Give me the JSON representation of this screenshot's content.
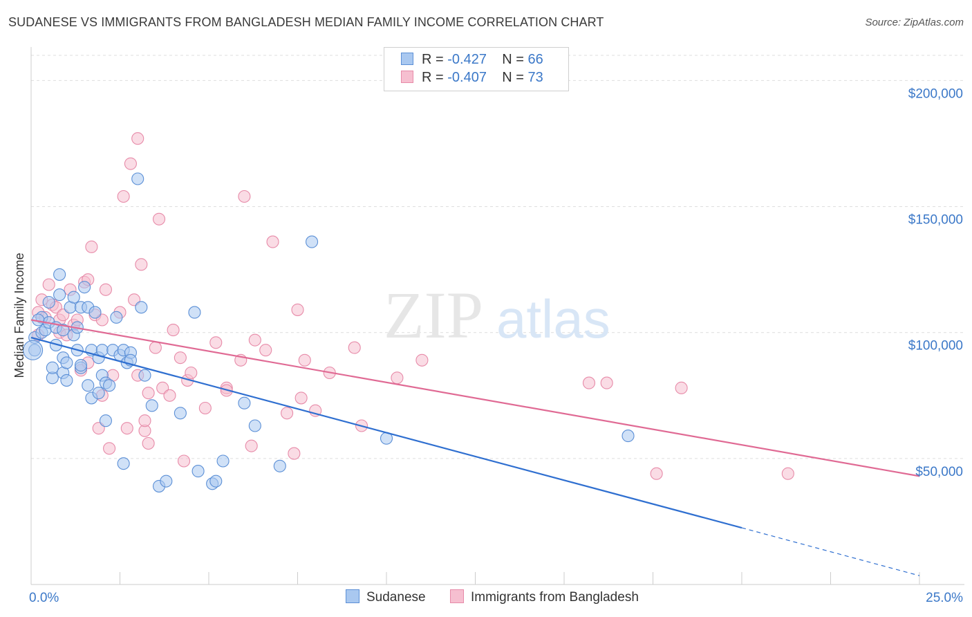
{
  "title": "SUDANESE VS IMMIGRANTS FROM BANGLADESH MEDIAN FAMILY INCOME CORRELATION CHART",
  "source": "Source: ZipAtlas.com",
  "watermark": {
    "zip": "ZIP",
    "atlas": "atlas"
  },
  "legend": {
    "rows": [
      {
        "r_label": "R =",
        "r_value": "-0.427",
        "n_label": "N =",
        "n_value": "66"
      },
      {
        "r_label": "R =",
        "r_value": "-0.407",
        "n_label": "N =",
        "n_value": "73"
      }
    ]
  },
  "bottom_legend": [
    "Sudanese",
    "Immigrants from Bangladesh"
  ],
  "colors": {
    "blue_fill": "#a9c8f0",
    "blue_stroke": "#5b8fd6",
    "blue_line": "#2f6fd0",
    "pink_fill": "#f6bfd0",
    "pink_stroke": "#e78aa8",
    "pink_line": "#e06a94",
    "axis_text": "#3b78c8",
    "grid": "#dddddd"
  },
  "chart_data": {
    "type": "scatter",
    "title": "SUDANESE VS IMMIGRANTS FROM BANGLADESH MEDIAN FAMILY INCOME CORRELATION CHART",
    "xlabel": "",
    "ylabel": "Median Family Income",
    "xlim": [
      0,
      25
    ],
    "ylim": [
      0,
      210000
    ],
    "x_tick_labels": [
      "0.0%",
      "25.0%"
    ],
    "y_ticks": [
      50000,
      100000,
      150000,
      200000
    ],
    "y_tick_labels": [
      "$50,000",
      "$100,000",
      "$150,000",
      "$200,000"
    ],
    "grid": "horizontal dashed",
    "legend_position": "top-center",
    "series": [
      {
        "name": "Sudanese",
        "color": "#a9c8f0",
        "trend": {
          "x0": 0,
          "y0": 98000,
          "x1": 20,
          "y1": 22500,
          "dashed_to_x": 25,
          "dashed_to_y": 3500
        },
        "points": [
          [
            0.1,
            98000
          ],
          [
            0.1,
            93000
          ],
          [
            0.3,
            106000
          ],
          [
            0.3,
            100000
          ],
          [
            0.4,
            101000
          ],
          [
            0.5,
            104000
          ],
          [
            0.5,
            112000
          ],
          [
            0.6,
            82000
          ],
          [
            0.6,
            86000
          ],
          [
            0.7,
            102000
          ],
          [
            0.7,
            95000
          ],
          [
            0.8,
            115000
          ],
          [
            0.8,
            123000
          ],
          [
            0.9,
            90000
          ],
          [
            0.9,
            84000
          ],
          [
            1.0,
            88000
          ],
          [
            1.0,
            81000
          ],
          [
            1.1,
            110000
          ],
          [
            1.2,
            99000
          ],
          [
            1.2,
            114000
          ],
          [
            1.3,
            102000
          ],
          [
            1.4,
            86000
          ],
          [
            1.4,
            87000
          ],
          [
            1.4,
            110000
          ],
          [
            1.5,
            118000
          ],
          [
            1.6,
            110000
          ],
          [
            1.6,
            79000
          ],
          [
            1.7,
            93000
          ],
          [
            1.7,
            74000
          ],
          [
            1.8,
            108000
          ],
          [
            1.9,
            76000
          ],
          [
            1.9,
            90000
          ],
          [
            2.0,
            93000
          ],
          [
            2.0,
            83000
          ],
          [
            2.1,
            65000
          ],
          [
            2.1,
            80000
          ],
          [
            2.2,
            79000
          ],
          [
            2.3,
            93000
          ],
          [
            2.4,
            106000
          ],
          [
            2.5,
            91000
          ],
          [
            2.6,
            93000
          ],
          [
            2.6,
            48000
          ],
          [
            2.7,
            88000
          ],
          [
            2.8,
            92000
          ],
          [
            3.0,
            161000
          ],
          [
            3.1,
            110000
          ],
          [
            3.2,
            83000
          ],
          [
            3.4,
            71000
          ],
          [
            3.6,
            39000
          ],
          [
            3.8,
            41000
          ],
          [
            4.6,
            108000
          ],
          [
            4.7,
            45000
          ],
          [
            5.1,
            40000
          ],
          [
            5.2,
            41000
          ],
          [
            5.4,
            49000
          ],
          [
            6.3,
            63000
          ],
          [
            7.0,
            47000
          ],
          [
            7.9,
            136000
          ],
          [
            10.0,
            58000
          ],
          [
            16.8,
            59000
          ],
          [
            0.2,
            105000
          ],
          [
            0.9,
            101000
          ],
          [
            1.3,
            93000
          ],
          [
            2.8,
            89000
          ],
          [
            4.2,
            68000
          ],
          [
            6.0,
            72000
          ]
        ]
      },
      {
        "name": "Immigrants from Bangladesh",
        "color": "#f6bfd0",
        "trend": {
          "x0": 0,
          "y0": 105000,
          "x1": 25,
          "y1": 43000
        },
        "points": [
          [
            0.2,
            108000
          ],
          [
            0.2,
            99000
          ],
          [
            0.3,
            113000
          ],
          [
            0.4,
            106000
          ],
          [
            0.5,
            119000
          ],
          [
            0.6,
            111000
          ],
          [
            0.7,
            110000
          ],
          [
            0.8,
            100000
          ],
          [
            0.8,
            105000
          ],
          [
            0.9,
            107000
          ],
          [
            1.0,
            99000
          ],
          [
            1.1,
            117000
          ],
          [
            1.2,
            103000
          ],
          [
            1.3,
            105000
          ],
          [
            1.4,
            85000
          ],
          [
            1.5,
            120000
          ],
          [
            1.6,
            121000
          ],
          [
            1.6,
            88000
          ],
          [
            1.7,
            134000
          ],
          [
            1.8,
            107000
          ],
          [
            1.9,
            62000
          ],
          [
            2.0,
            105000
          ],
          [
            2.1,
            117000
          ],
          [
            2.2,
            54000
          ],
          [
            2.3,
            83000
          ],
          [
            2.5,
            108000
          ],
          [
            2.6,
            154000
          ],
          [
            2.7,
            62000
          ],
          [
            2.8,
            167000
          ],
          [
            2.9,
            113000
          ],
          [
            3.0,
            177000
          ],
          [
            3.1,
            127000
          ],
          [
            3.2,
            61000
          ],
          [
            3.2,
            65000
          ],
          [
            3.3,
            56000
          ],
          [
            3.3,
            76000
          ],
          [
            3.5,
            94000
          ],
          [
            3.6,
            145000
          ],
          [
            3.7,
            78000
          ],
          [
            3.9,
            75000
          ],
          [
            4.0,
            101000
          ],
          [
            4.2,
            90000
          ],
          [
            4.3,
            49000
          ],
          [
            4.4,
            81000
          ],
          [
            4.5,
            84000
          ],
          [
            4.9,
            70000
          ],
          [
            5.2,
            96000
          ],
          [
            5.5,
            78000
          ],
          [
            5.9,
            89000
          ],
          [
            6.0,
            154000
          ],
          [
            6.2,
            55000
          ],
          [
            6.3,
            97000
          ],
          [
            6.6,
            93000
          ],
          [
            6.8,
            136000
          ],
          [
            7.2,
            68000
          ],
          [
            7.4,
            52000
          ],
          [
            7.5,
            109000
          ],
          [
            7.6,
            74000
          ],
          [
            7.7,
            89000
          ],
          [
            8.0,
            69000
          ],
          [
            8.4,
            84000
          ],
          [
            9.1,
            94000
          ],
          [
            9.3,
            63000
          ],
          [
            10.3,
            82000
          ],
          [
            11.0,
            89000
          ],
          [
            15.7,
            80000
          ],
          [
            16.2,
            80000
          ],
          [
            18.3,
            78000
          ],
          [
            17.6,
            44000
          ],
          [
            21.3,
            44000
          ],
          [
            5.5,
            77000
          ],
          [
            3.0,
            83000
          ],
          [
            2.0,
            75000
          ]
        ]
      }
    ]
  }
}
